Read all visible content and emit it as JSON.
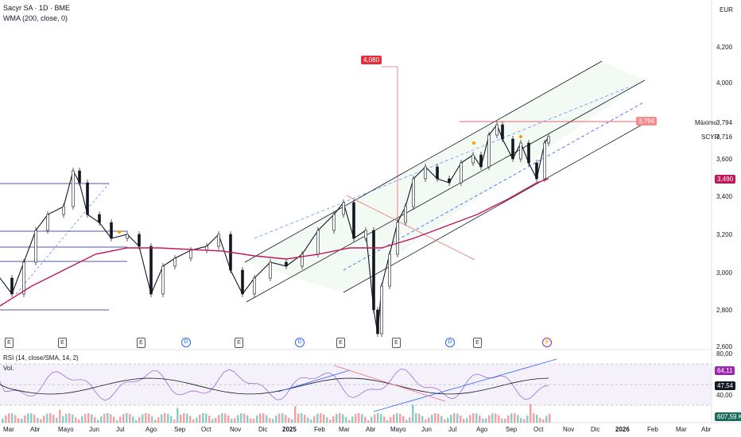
{
  "header": {
    "title": "Sacyr SA · 1D · BME",
    "indicator": "WMA (200, close, 0)",
    "currency": "EUR"
  },
  "price_axis": [
    "4,200",
    "4,000",
    "3,600",
    "3,400",
    "3,200",
    "3,000",
    "2,800",
    "2,600"
  ],
  "labels": {
    "peak_target": "4,080",
    "channel_tag": "3,794",
    "maximo_label": "Máximo",
    "maximo_value": "3,794",
    "symbol_label": "SCYR",
    "symbol_value": "3,716",
    "wma_value": "3,490"
  },
  "rsi": {
    "title": "RSI (14, close/SMA, 14, 2)",
    "level_high": "80,00",
    "value": "64,11",
    "sma_value": "47,54",
    "level_low": "40,00"
  },
  "volume": {
    "title": "Vol.",
    "value": "607,59 K"
  },
  "events": [
    "E",
    "E",
    "E",
    "D",
    "E",
    "D",
    "E",
    "E",
    "D",
    "E",
    "⚡"
  ],
  "x_axis": [
    "Mar",
    "Abr",
    "Mayo",
    "Jun",
    "Jul",
    "Ago",
    "Sep",
    "Oct",
    "Nov",
    "Dic",
    "2025",
    "Feb",
    "Mar",
    "Abr",
    "Mayo",
    "Jun",
    "Jul",
    "Ago",
    "Sep",
    "Oct",
    "Nov",
    "Dic",
    "2026",
    "Feb",
    "Mar",
    "Abr"
  ],
  "colors": {
    "up": "#131722",
    "wma": "#c2185b",
    "channel": "#131722",
    "mid_dash": "#2962ff",
    "rsi": "#9c6ade",
    "red_tag": "#e0303a",
    "rsi_value_bg": "#9c27b0"
  },
  "chart_data": {
    "type": "line",
    "title": "Sacyr SA · 1D · BME",
    "ylabel": "EUR",
    "ylim": [
      2.6,
      4.3
    ],
    "x": [
      "Mar",
      "Abr",
      "Mayo",
      "Jun",
      "Jul",
      "Ago",
      "Sep",
      "Oct",
      "Nov",
      "Dic",
      "2025",
      "Feb",
      "Mar",
      "Abr",
      "Mayo",
      "Jun",
      "Jul",
      "Ago",
      "Sep",
      "Oct"
    ],
    "series": [
      {
        "name": "Sacyr SA",
        "values": [
          2.95,
          2.85,
          3.55,
          3.3,
          3.2,
          3.1,
          3.15,
          3.18,
          2.9,
          3.1,
          3.15,
          3.35,
          3.25,
          2.75,
          3.2,
          3.5,
          3.55,
          3.75,
          3.6,
          3.716
        ]
      },
      {
        "name": "WMA (200, close, 0)",
        "values": [
          2.85,
          3.05,
          3.15,
          3.2,
          3.22,
          3.21,
          3.18,
          3.15,
          3.12,
          3.12,
          3.14,
          3.17,
          3.2,
          3.22,
          3.28,
          3.35,
          3.4,
          3.45,
          3.47,
          3.49
        ]
      }
    ]
  }
}
